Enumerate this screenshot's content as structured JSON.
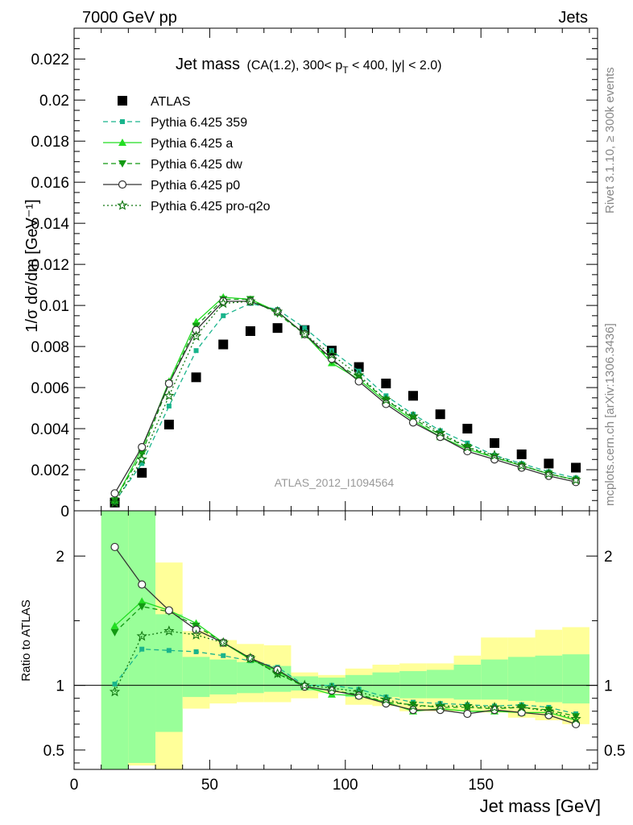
{
  "header": {
    "left": "7000 GeV pp",
    "right": "Jets",
    "right_side_top": "Rivet 3.1.10, ≥ 300k events",
    "right_side_bottom": "mcplots.cern.ch [arXiv:1306.3436]",
    "watermark": "ATLAS_2012_I1094564"
  },
  "chart_data": [
    {
      "type": "scatter",
      "title": "Jet mass",
      "subtitle": "(CA(1.2), 300< p_T < 400, |y| < 2.0)",
      "ylabel": "1/σ dσ/dm [GeV⁻¹]",
      "xlim": [
        0,
        193
      ],
      "ylim": [
        0,
        0.0235
      ],
      "yticks": [
        "0",
        "0.002",
        "0.004",
        "0.006",
        "0.008",
        "0.01",
        "0.012",
        "0.014",
        "0.016",
        "0.018",
        "0.02",
        "0.022"
      ],
      "legend": "top-left",
      "x": [
        15,
        25,
        35,
        45,
        55,
        65,
        75,
        85,
        95,
        105,
        115,
        125,
        135,
        145,
        155,
        165,
        175,
        185
      ],
      "series": [
        {
          "name": "ATLAS",
          "color": "#000000",
          "marker": "square",
          "line": "none",
          "values": [
            0.0004,
            0.00185,
            0.0042,
            0.0065,
            0.0081,
            0.00875,
            0.0089,
            0.0088,
            0.0078,
            0.007,
            0.0062,
            0.0056,
            0.0047,
            0.004,
            0.0033,
            0.00275,
            0.0023,
            0.0021
          ]
        },
        {
          "name": "Pythia 6.425 359",
          "color": "#19b48c",
          "marker": "small-square",
          "line": "dashed",
          "values": [
            0.00045,
            0.0023,
            0.0051,
            0.0078,
            0.0095,
            0.0101,
            0.0098,
            0.0089,
            0.0078,
            0.0068,
            0.0056,
            0.0047,
            0.0039,
            0.0033,
            0.0027,
            0.0023,
            0.0019,
            0.0016
          ]
        },
        {
          "name": "Pythia 6.425 a",
          "color": "#22dd22",
          "marker": "triangle-up",
          "line": "solid",
          "values": [
            0.0005,
            0.003,
            0.0063,
            0.0092,
            0.0104,
            0.0103,
            0.0097,
            0.0086,
            0.0072,
            0.0064,
            0.0053,
            0.0044,
            0.0036,
            0.003,
            0.0026,
            0.0022,
            0.0018,
            0.0015
          ]
        },
        {
          "name": "Pythia 6.425 dw",
          "color": "#129912",
          "marker": "triangle-down",
          "line": "dashed",
          "values": [
            0.0005,
            0.0028,
            0.0062,
            0.009,
            0.0103,
            0.0103,
            0.0096,
            0.0086,
            0.0073,
            0.0065,
            0.0054,
            0.0045,
            0.0037,
            0.0031,
            0.0026,
            0.0022,
            0.0018,
            0.0015
          ]
        },
        {
          "name": "Pythia 6.425 p0",
          "color": "#333333",
          "marker": "circle",
          "line": "solid",
          "values": [
            0.00085,
            0.0031,
            0.0062,
            0.0088,
            0.0102,
            0.0102,
            0.0097,
            0.0086,
            0.0074,
            0.0063,
            0.0052,
            0.0043,
            0.0036,
            0.0029,
            0.0025,
            0.0021,
            0.0017,
            0.0014
          ]
        },
        {
          "name": "Pythia 6.425 pro-q2o",
          "color": "#117711",
          "marker": "star",
          "line": "dotted",
          "values": [
            0.0004,
            0.0025,
            0.0056,
            0.0085,
            0.0101,
            0.0102,
            0.0097,
            0.0086,
            0.0076,
            0.0066,
            0.0054,
            0.0046,
            0.0038,
            0.0031,
            0.0027,
            0.0022,
            0.0018,
            0.0015
          ]
        }
      ]
    },
    {
      "type": "scatter",
      "ylabel": "Ratio to ATLAS",
      "xlabel": "Jet mass [GeV]",
      "xlim": [
        0,
        193
      ],
      "ylim": [
        0.35,
        2.35
      ],
      "xticks": [
        "0",
        "50",
        "100",
        "150"
      ],
      "yticks": [
        "0.5",
        "1",
        "2"
      ],
      "x": [
        15,
        25,
        35,
        45,
        55,
        65,
        75,
        85,
        95,
        105,
        115,
        125,
        135,
        145,
        155,
        165,
        175,
        185
      ],
      "bands": {
        "bins": [
          [
            10,
            20
          ],
          [
            20,
            30
          ],
          [
            30,
            40
          ],
          [
            40,
            50
          ],
          [
            50,
            60
          ],
          [
            60,
            70
          ],
          [
            70,
            80
          ],
          [
            80,
            90
          ],
          [
            90,
            100
          ],
          [
            100,
            110
          ],
          [
            110,
            120
          ],
          [
            120,
            130
          ],
          [
            130,
            140
          ],
          [
            140,
            150
          ],
          [
            150,
            160
          ],
          [
            160,
            170
          ],
          [
            170,
            180
          ],
          [
            180,
            190
          ]
        ],
        "total": [
          [
            0.35,
            2.35
          ],
          [
            0.38,
            2.35
          ],
          [
            0.35,
            1.95
          ],
          [
            0.82,
            1.42
          ],
          [
            0.86,
            1.35
          ],
          [
            0.87,
            1.32
          ],
          [
            0.87,
            1.31
          ],
          [
            0.9,
            1.1
          ],
          [
            0.94,
            1.08
          ],
          [
            0.85,
            1.13
          ],
          [
            0.84,
            1.16
          ],
          [
            0.8,
            1.17
          ],
          [
            0.8,
            1.17
          ],
          [
            0.8,
            1.23
          ],
          [
            0.79,
            1.37
          ],
          [
            0.75,
            1.37
          ],
          [
            0.73,
            1.43
          ],
          [
            0.7,
            1.45
          ]
        ],
        "stat": [
          [
            0.35,
            2.35
          ],
          [
            0.4,
            2.35
          ],
          [
            0.64,
            1.55
          ],
          [
            0.91,
            1.22
          ],
          [
            0.93,
            1.2
          ],
          [
            0.94,
            1.18
          ],
          [
            0.95,
            1.15
          ],
          [
            0.96,
            1.07
          ],
          [
            0.96,
            1.06
          ],
          [
            0.91,
            1.08
          ],
          [
            0.91,
            1.1
          ],
          [
            0.9,
            1.11
          ],
          [
            0.9,
            1.12
          ],
          [
            0.89,
            1.16
          ],
          [
            0.89,
            1.2
          ],
          [
            0.88,
            1.22
          ],
          [
            0.87,
            1.23
          ],
          [
            0.86,
            1.24
          ]
        ]
      },
      "series": [
        {
          "name": "Pythia 6.425 359",
          "color": "#19b48c",
          "marker": "small-square",
          "line": "dashed",
          "values": [
            1.01,
            1.28,
            1.27,
            1.26,
            1.23,
            1.19,
            1.14,
            1.0,
            1.0,
            0.97,
            0.91,
            0.87,
            0.86,
            0.85,
            0.84,
            0.85,
            0.83,
            0.78
          ]
        },
        {
          "name": "Pythia 6.425 a",
          "color": "#22dd22",
          "marker": "triangle-up",
          "line": "solid",
          "values": [
            1.46,
            1.65,
            1.58,
            1.48,
            1.33,
            1.2,
            1.11,
            0.99,
            0.93,
            0.92,
            0.87,
            0.8,
            0.82,
            0.8,
            0.8,
            0.79,
            0.79,
            0.73
          ]
        },
        {
          "name": "Pythia 6.425 dw",
          "color": "#129912",
          "marker": "triangle-down",
          "line": "dashed",
          "values": [
            1.41,
            1.61,
            1.57,
            1.46,
            1.33,
            1.21,
            1.09,
            0.99,
            0.96,
            0.93,
            0.87,
            0.85,
            0.83,
            0.83,
            0.82,
            0.83,
            0.81,
            0.76
          ]
        },
        {
          "name": "Pythia 6.425 p0",
          "color": "#333333",
          "marker": "circle",
          "line": "solid",
          "values": [
            2.07,
            1.78,
            1.58,
            1.43,
            1.33,
            1.21,
            1.12,
            0.99,
            0.96,
            0.92,
            0.86,
            0.81,
            0.81,
            0.78,
            0.81,
            0.79,
            0.77,
            0.7
          ]
        },
        {
          "name": "Pythia 6.425 pro-q2o",
          "color": "#117711",
          "marker": "star",
          "line": "dotted",
          "values": [
            0.95,
            1.38,
            1.42,
            1.39,
            1.33,
            1.21,
            1.09,
            1.0,
            0.98,
            0.95,
            0.89,
            0.84,
            0.84,
            0.84,
            0.83,
            0.83,
            0.8,
            0.74
          ]
        }
      ]
    }
  ]
}
